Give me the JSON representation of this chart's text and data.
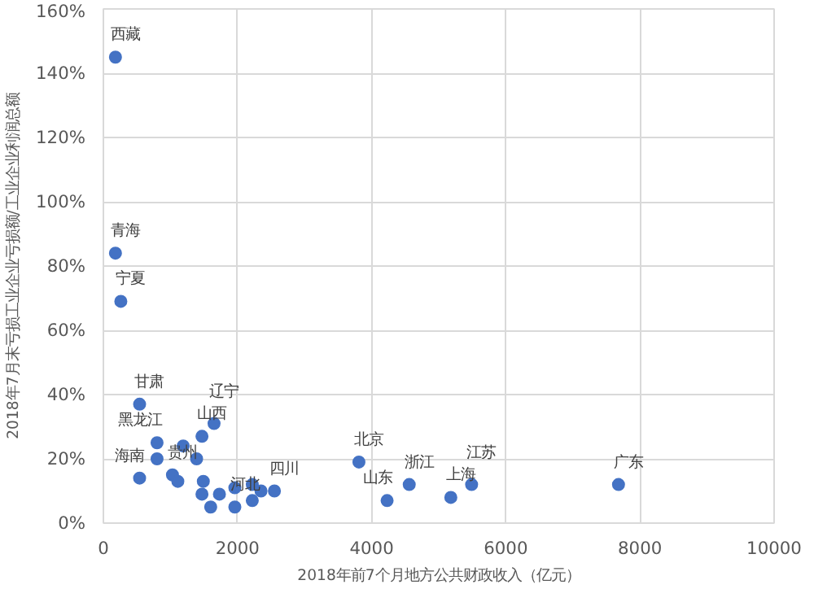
{
  "chart_data": {
    "type": "scatter",
    "xlabel": "2018年前7个月地方公共财政收入（亿元）",
    "ylabel": "2018年7月末亏损工业企业亏损额/工业企业利润总额",
    "x": [
      180,
      180,
      260,
      540,
      540,
      800,
      800,
      1030,
      1110,
      1190,
      1470,
      1390,
      1490,
      1650,
      1470,
      1600,
      1730,
      1960,
      1960,
      2220,
      2220,
      2350,
      2550,
      3810,
      4230,
      4560,
      5180,
      5490,
      7680
    ],
    "values": [
      145,
      84,
      69,
      37,
      14,
      20,
      25,
      15,
      13,
      24,
      27,
      20,
      13,
      31,
      9,
      5,
      9,
      11,
      5,
      12,
      7,
      10,
      10,
      19,
      7,
      12,
      8,
      12,
      12
    ],
    "value_labels": [
      "西藏",
      "青海",
      "宁夏",
      "甘肃",
      "海南",
      null,
      "黑龙江",
      "贵州",
      null,
      null,
      "山西",
      null,
      null,
      "辽宁",
      null,
      null,
      null,
      null,
      "河北",
      null,
      null,
      null,
      "四川",
      "北京",
      "山东",
      "浙江",
      "上海",
      "江苏",
      "广东"
    ],
    "color": "#4472c4",
    "marker": "circle",
    "grid": true,
    "xlim": [
      0,
      10000
    ],
    "xticks": [
      0,
      2000,
      4000,
      6000,
      8000,
      10000
    ],
    "ylim": [
      0,
      160
    ],
    "yticks": [
      {
        "value": 0,
        "label": "0%"
      },
      {
        "value": 20,
        "label": "20%"
      },
      {
        "value": 40,
        "label": "40%"
      },
      {
        "value": 60,
        "label": "60%"
      },
      {
        "value": 80,
        "label": "80%"
      },
      {
        "value": 100,
        "label": "100%"
      },
      {
        "value": 120,
        "label": "120%"
      },
      {
        "value": 140,
        "label": "140%"
      },
      {
        "value": 160,
        "label": "160%"
      }
    ]
  }
}
